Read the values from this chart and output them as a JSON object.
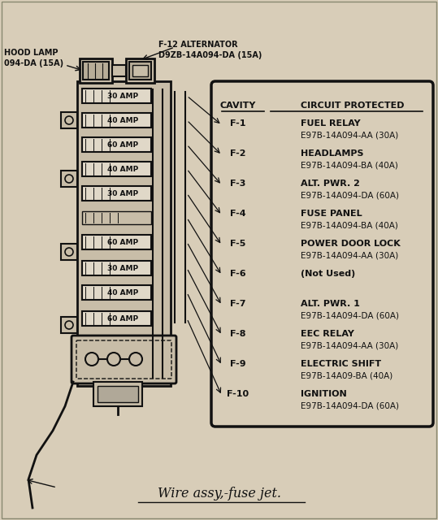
{
  "bg_color": "#d8cdb8",
  "title": "Wire assy,-fuse jet.",
  "top_left_label1": "HOOD LAMP",
  "top_left_label2": "094-DA (15A)",
  "top_center_label1": "F-12 ALTERNATOR",
  "top_center_label2": "D9ZB-14A094-DA (15A)",
  "cavity_header": "CAVITY",
  "circuit_header": "CIRCUIT PROTECTED",
  "fuses": [
    {
      "cavity": "F-1",
      "circuit": "FUEL RELAY",
      "detail": "E97B-14A094-AA (30A)"
    },
    {
      "cavity": "F-2",
      "circuit": "HEADLAMPS",
      "detail": "E97B-14A094-BA (40A)"
    },
    {
      "cavity": "F-3",
      "circuit": "ALT. PWR. 2",
      "detail": "E97B-14A094-DA (60A)"
    },
    {
      "cavity": "F-4",
      "circuit": "FUSE PANEL",
      "detail": "E97B-14A094-BA (40A)"
    },
    {
      "cavity": "F-5",
      "circuit": "POWER DOOR LOCK",
      "detail": "E97B-14A094-AA (30A)"
    },
    {
      "cavity": "F-6",
      "circuit": "(Not Used)",
      "detail": ""
    },
    {
      "cavity": "F-7",
      "circuit": "ALT. PWR. 1",
      "detail": "E97B-14A094-DA (60A)"
    },
    {
      "cavity": "F-8",
      "circuit": "EEC RELAY",
      "detail": "E97B-14A094-AA (30A)"
    },
    {
      "cavity": "F-9",
      "circuit": "ELECTRIC SHIFT",
      "detail": "E97B-14A09-BA (40A)"
    },
    {
      "cavity": "F-10",
      "circuit": "IGNITION",
      "detail": "E97B-14A094-DA (60A)"
    }
  ],
  "amp_labels": [
    "30 AMP",
    "40 AMP",
    "60 AMP",
    "40 AMP",
    "30 AMP",
    "",
    "60 AMP",
    "30 AMP",
    "40 AMP",
    "60 AMP"
  ],
  "lc": "#111111",
  "fuse_fill": "#c8bda8",
  "amp_box_fill": "#e0d8c8"
}
